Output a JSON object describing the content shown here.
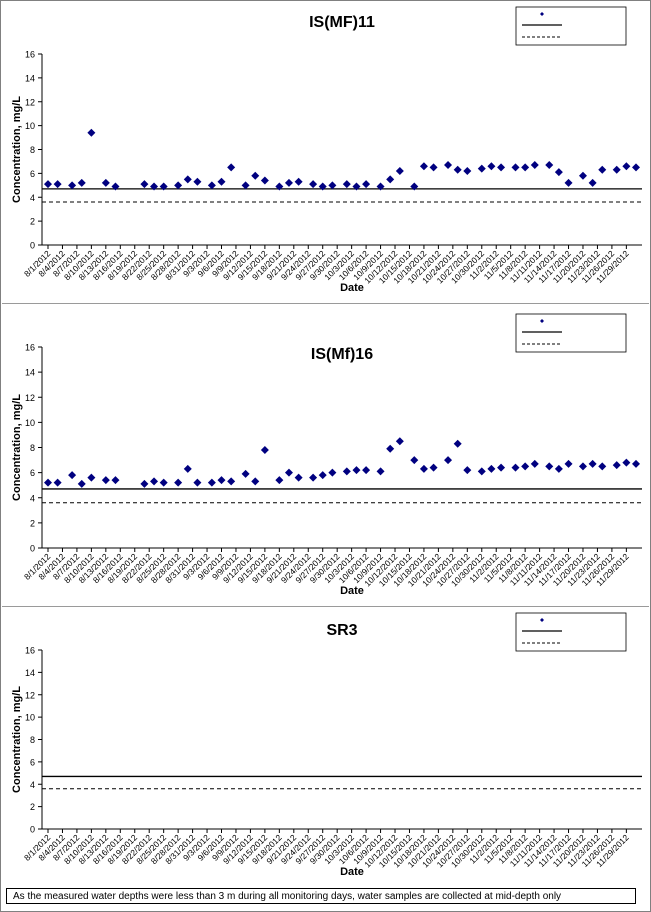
{
  "colors": {
    "marker": "#000080",
    "line": "#000000",
    "frame": "#808080"
  },
  "legend_labels": {
    "marker": "",
    "solid": "",
    "dashed": ""
  },
  "footnote": "As the measured water depths were less than 3 m during all monitoring days, water samples are collected  at mid-depth only",
  "chart_data": [
    {
      "type": "scatter",
      "title": "IS(MF)11",
      "xlabel": "Date",
      "ylabel": "Concentration, mg/L",
      "ylim": [
        0,
        16
      ],
      "yticks": [
        0,
        2,
        4,
        6,
        8,
        10,
        12,
        14,
        16
      ],
      "xlim": [
        "2012-08-01",
        "2012-12-01"
      ],
      "xtick_labels": [
        "8/1/2012",
        "8/4/2012",
        "8/7/2012",
        "8/10/2012",
        "8/13/2012",
        "8/16/2012",
        "8/19/2012",
        "8/22/2012",
        "8/25/2012",
        "8/28/2012",
        "8/31/2012",
        "9/3/2012",
        "9/6/2012",
        "9/9/2012",
        "9/12/2012",
        "9/15/2012",
        "9/18/2012",
        "9/21/2012",
        "9/24/2012",
        "9/27/2012",
        "9/30/2012",
        "10/3/2012",
        "10/6/2012",
        "10/9/2012",
        "10/12/2012",
        "10/15/2012",
        "10/18/2012",
        "10/21/2012",
        "10/24/2012",
        "10/27/2012",
        "10/30/2012",
        "11/2/2012",
        "11/5/2012",
        "11/8/2012",
        "11/11/2012",
        "11/14/2012",
        "11/17/2012",
        "11/20/2012",
        "11/23/2012",
        "11/26/2012",
        "11/29/2012"
      ],
      "grid": false,
      "legend_position": "top-right",
      "reference_lines": [
        {
          "style": "solid",
          "value": 4.7
        },
        {
          "style": "dashed",
          "value": 3.6
        }
      ],
      "series": [
        {
          "marker": "diamond",
          "points": [
            [
              "2012-08-01",
              5.1
            ],
            [
              "2012-08-03",
              5.1
            ],
            [
              "2012-08-06",
              5.0
            ],
            [
              "2012-08-08",
              5.2
            ],
            [
              "2012-08-10",
              9.4
            ],
            [
              "2012-08-13",
              5.2
            ],
            [
              "2012-08-15",
              4.9
            ],
            [
              "2012-08-21",
              5.1
            ],
            [
              "2012-08-23",
              4.9
            ],
            [
              "2012-08-25",
              4.9
            ],
            [
              "2012-08-28",
              5.0
            ],
            [
              "2012-08-30",
              5.5
            ],
            [
              "2012-09-01",
              5.3
            ],
            [
              "2012-09-04",
              5.0
            ],
            [
              "2012-09-06",
              5.3
            ],
            [
              "2012-09-08",
              6.5
            ],
            [
              "2012-09-11",
              5.0
            ],
            [
              "2012-09-13",
              5.8
            ],
            [
              "2012-09-15",
              5.4
            ],
            [
              "2012-09-18",
              4.9
            ],
            [
              "2012-09-20",
              5.2
            ],
            [
              "2012-09-22",
              5.3
            ],
            [
              "2012-09-25",
              5.1
            ],
            [
              "2012-09-27",
              4.9
            ],
            [
              "2012-09-29",
              5.0
            ],
            [
              "2012-10-02",
              5.1
            ],
            [
              "2012-10-04",
              4.9
            ],
            [
              "2012-10-06",
              5.1
            ],
            [
              "2012-10-09",
              4.9
            ],
            [
              "2012-10-11",
              5.5
            ],
            [
              "2012-10-13",
              6.2
            ],
            [
              "2012-10-16",
              4.9
            ],
            [
              "2012-10-18",
              6.6
            ],
            [
              "2012-10-20",
              6.5
            ],
            [
              "2012-10-23",
              6.7
            ],
            [
              "2012-10-25",
              6.3
            ],
            [
              "2012-10-27",
              6.2
            ],
            [
              "2012-10-30",
              6.4
            ],
            [
              "2012-11-01",
              6.6
            ],
            [
              "2012-11-03",
              6.5
            ],
            [
              "2012-11-06",
              6.5
            ],
            [
              "2012-11-08",
              6.5
            ],
            [
              "2012-11-10",
              6.7
            ],
            [
              "2012-11-13",
              6.7
            ],
            [
              "2012-11-15",
              6.1
            ],
            [
              "2012-11-17",
              5.2
            ],
            [
              "2012-11-20",
              5.8
            ],
            [
              "2012-11-22",
              5.2
            ],
            [
              "2012-11-24",
              6.3
            ],
            [
              "2012-11-27",
              6.3
            ],
            [
              "2012-11-29",
              6.6
            ],
            [
              "2012-12-01",
              6.5
            ]
          ]
        }
      ]
    },
    {
      "type": "scatter",
      "title": "IS(Mf)16",
      "xlabel": "Date",
      "ylabel": "Concentration, mg/L",
      "ylim": [
        0,
        16
      ],
      "yticks": [
        0,
        2,
        4,
        6,
        8,
        10,
        12,
        14,
        16
      ],
      "xlim": [
        "2012-08-01",
        "2012-12-01"
      ],
      "xtick_labels": [
        "8/1/2012",
        "8/4/2012",
        "8/7/2012",
        "8/10/2012",
        "8/13/2012",
        "8/16/2012",
        "8/19/2012",
        "8/22/2012",
        "8/25/2012",
        "8/28/2012",
        "8/31/2012",
        "9/3/2012",
        "9/6/2012",
        "9/9/2012",
        "9/12/2012",
        "9/15/2012",
        "9/18/2012",
        "9/21/2012",
        "9/24/2012",
        "9/27/2012",
        "9/30/2012",
        "10/3/2012",
        "10/6/2012",
        "10/9/2012",
        "10/12/2012",
        "10/15/2012",
        "10/18/2012",
        "10/21/2012",
        "10/24/2012",
        "10/27/2012",
        "10/30/2012",
        "11/2/2012",
        "11/5/2012",
        "11/8/2012",
        "11/11/2012",
        "11/14/2012",
        "11/17/2012",
        "11/20/2012",
        "11/23/2012",
        "11/26/2012",
        "11/29/2012"
      ],
      "grid": false,
      "legend_position": "top-right",
      "reference_lines": [
        {
          "style": "solid",
          "value": 4.7
        },
        {
          "style": "dashed",
          "value": 3.6
        }
      ],
      "series": [
        {
          "marker": "diamond",
          "points": [
            [
              "2012-08-01",
              5.2
            ],
            [
              "2012-08-03",
              5.2
            ],
            [
              "2012-08-06",
              5.8
            ],
            [
              "2012-08-08",
              5.1
            ],
            [
              "2012-08-10",
              5.6
            ],
            [
              "2012-08-13",
              5.4
            ],
            [
              "2012-08-15",
              5.4
            ],
            [
              "2012-08-21",
              5.1
            ],
            [
              "2012-08-23",
              5.3
            ],
            [
              "2012-08-25",
              5.2
            ],
            [
              "2012-08-28",
              5.2
            ],
            [
              "2012-08-30",
              6.3
            ],
            [
              "2012-09-01",
              5.2
            ],
            [
              "2012-09-04",
              5.2
            ],
            [
              "2012-09-06",
              5.4
            ],
            [
              "2012-09-08",
              5.3
            ],
            [
              "2012-09-11",
              5.9
            ],
            [
              "2012-09-13",
              5.3
            ],
            [
              "2012-09-15",
              7.8
            ],
            [
              "2012-09-18",
              5.4
            ],
            [
              "2012-09-20",
              6.0
            ],
            [
              "2012-09-22",
              5.6
            ],
            [
              "2012-09-25",
              5.6
            ],
            [
              "2012-09-27",
              5.8
            ],
            [
              "2012-09-29",
              6.0
            ],
            [
              "2012-10-02",
              6.1
            ],
            [
              "2012-10-04",
              6.2
            ],
            [
              "2012-10-06",
              6.2
            ],
            [
              "2012-10-09",
              6.1
            ],
            [
              "2012-10-11",
              7.9
            ],
            [
              "2012-10-13",
              8.5
            ],
            [
              "2012-10-16",
              7.0
            ],
            [
              "2012-10-18",
              6.3
            ],
            [
              "2012-10-20",
              6.4
            ],
            [
              "2012-10-23",
              7.0
            ],
            [
              "2012-10-25",
              8.3
            ],
            [
              "2012-10-27",
              6.2
            ],
            [
              "2012-10-30",
              6.1
            ],
            [
              "2012-11-01",
              6.3
            ],
            [
              "2012-11-03",
              6.4
            ],
            [
              "2012-11-06",
              6.4
            ],
            [
              "2012-11-08",
              6.5
            ],
            [
              "2012-11-10",
              6.7
            ],
            [
              "2012-11-13",
              6.5
            ],
            [
              "2012-11-15",
              6.3
            ],
            [
              "2012-11-17",
              6.7
            ],
            [
              "2012-11-20",
              6.5
            ],
            [
              "2012-11-22",
              6.7
            ],
            [
              "2012-11-24",
              6.5
            ],
            [
              "2012-11-27",
              6.6
            ],
            [
              "2012-11-29",
              6.8
            ],
            [
              "2012-12-01",
              6.7
            ]
          ]
        }
      ]
    },
    {
      "type": "scatter",
      "title": "SR3",
      "xlabel": "Date",
      "ylabel": "Concentration, mg/L",
      "ylim": [
        0,
        16
      ],
      "yticks": [
        0,
        2,
        4,
        6,
        8,
        10,
        12,
        14,
        16
      ],
      "xlim": [
        "2012-08-01",
        "2012-12-01"
      ],
      "xtick_labels": [
        "8/1/2012",
        "8/4/2012",
        "8/7/2012",
        "8/10/2012",
        "8/13/2012",
        "8/16/2012",
        "8/19/2012",
        "8/22/2012",
        "8/25/2012",
        "8/28/2012",
        "8/31/2012",
        "9/3/2012",
        "9/6/2012",
        "9/9/2012",
        "9/12/2012",
        "9/15/2012",
        "9/18/2012",
        "9/21/2012",
        "9/24/2012",
        "9/27/2012",
        "9/30/2012",
        "10/3/2012",
        "10/6/2012",
        "10/9/2012",
        "10/12/2012",
        "10/15/2012",
        "10/18/2012",
        "10/21/2012",
        "10/24/2012",
        "10/27/2012",
        "10/30/2012",
        "11/2/2012",
        "11/5/2012",
        "11/8/2012",
        "11/11/2012",
        "11/14/2012",
        "11/17/2012",
        "11/20/2012",
        "11/23/2012",
        "11/26/2012",
        "11/29/2012"
      ],
      "grid": false,
      "legend_position": "top-right",
      "reference_lines": [
        {
          "style": "solid",
          "value": 4.7
        },
        {
          "style": "dashed",
          "value": 3.6
        }
      ],
      "series": [
        {
          "marker": "diamond",
          "points": []
        }
      ]
    }
  ]
}
